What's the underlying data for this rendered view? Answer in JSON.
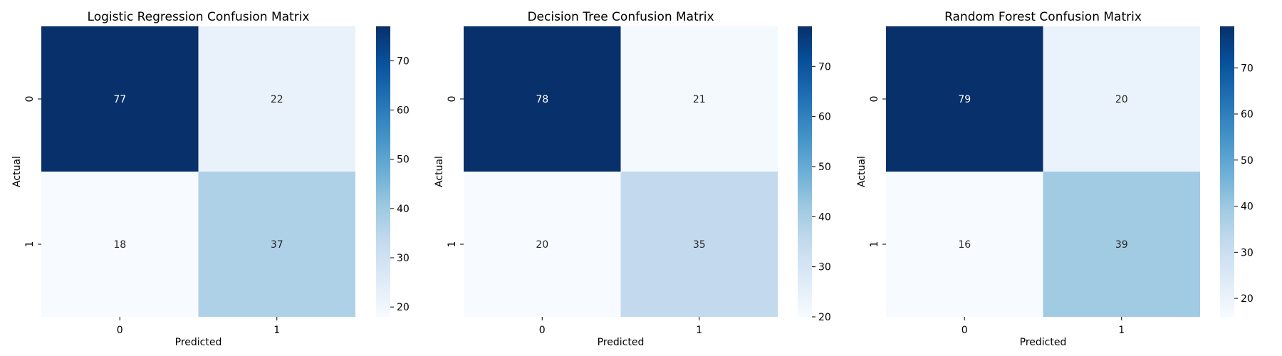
{
  "chart_data": [
    {
      "type": "heatmap",
      "title": "Logistic Regression Confusion Matrix",
      "xlabel": "Predicted",
      "ylabel": "Actual",
      "x_categories": [
        "0",
        "1"
      ],
      "y_categories": [
        "0",
        "1"
      ],
      "values": [
        [
          77,
          22
        ],
        [
          18,
          37
        ]
      ],
      "colormap": "Blues",
      "colorbar": {
        "range": [
          18,
          77
        ],
        "ticks": [
          20,
          30,
          40,
          50,
          60,
          70
        ]
      }
    },
    {
      "type": "heatmap",
      "title": "Decision Tree Confusion Matrix",
      "xlabel": "Predicted",
      "ylabel": "Actual",
      "x_categories": [
        "0",
        "1"
      ],
      "y_categories": [
        "0",
        "1"
      ],
      "values": [
        [
          78,
          21
        ],
        [
          20,
          35
        ]
      ],
      "colormap": "Blues",
      "colorbar": {
        "range": [
          20,
          78
        ],
        "ticks": [
          20,
          30,
          40,
          50,
          60,
          70
        ]
      }
    },
    {
      "type": "heatmap",
      "title": "Random Forest Confusion Matrix",
      "xlabel": "Predicted",
      "ylabel": "Actual",
      "x_categories": [
        "0",
        "1"
      ],
      "y_categories": [
        "0",
        "1"
      ],
      "values": [
        [
          79,
          20
        ],
        [
          16,
          39
        ]
      ],
      "colormap": "Blues",
      "colorbar": {
        "range": [
          16,
          79
        ],
        "ticks": [
          20,
          30,
          40,
          50,
          60,
          70
        ]
      }
    }
  ]
}
